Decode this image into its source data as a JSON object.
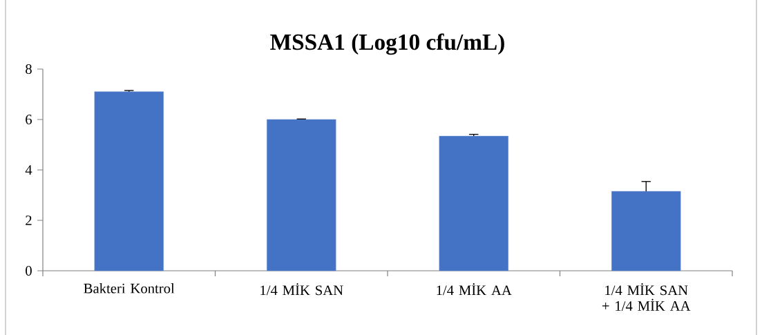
{
  "chart_data": {
    "type": "bar",
    "title": "MSSA1 (Log10 cfu/mL)",
    "categories": [
      "Bakteri Kontrol",
      "1/4 MİK SAN",
      "1/4 MİK AA",
      "1/4 MİK SAN + 1/4 MİK AA"
    ],
    "values": [
      7.1,
      6.0,
      5.34,
      3.15
    ],
    "errors": [
      [
        7.1,
        7.15
      ],
      [
        6.0,
        6.02
      ],
      [
        5.34,
        5.41
      ],
      [
        3.15,
        3.54
      ]
    ],
    "color": "#4472c4",
    "ylim": [
      0,
      8
    ],
    "yticks": [
      0,
      2,
      4,
      6,
      8
    ]
  }
}
